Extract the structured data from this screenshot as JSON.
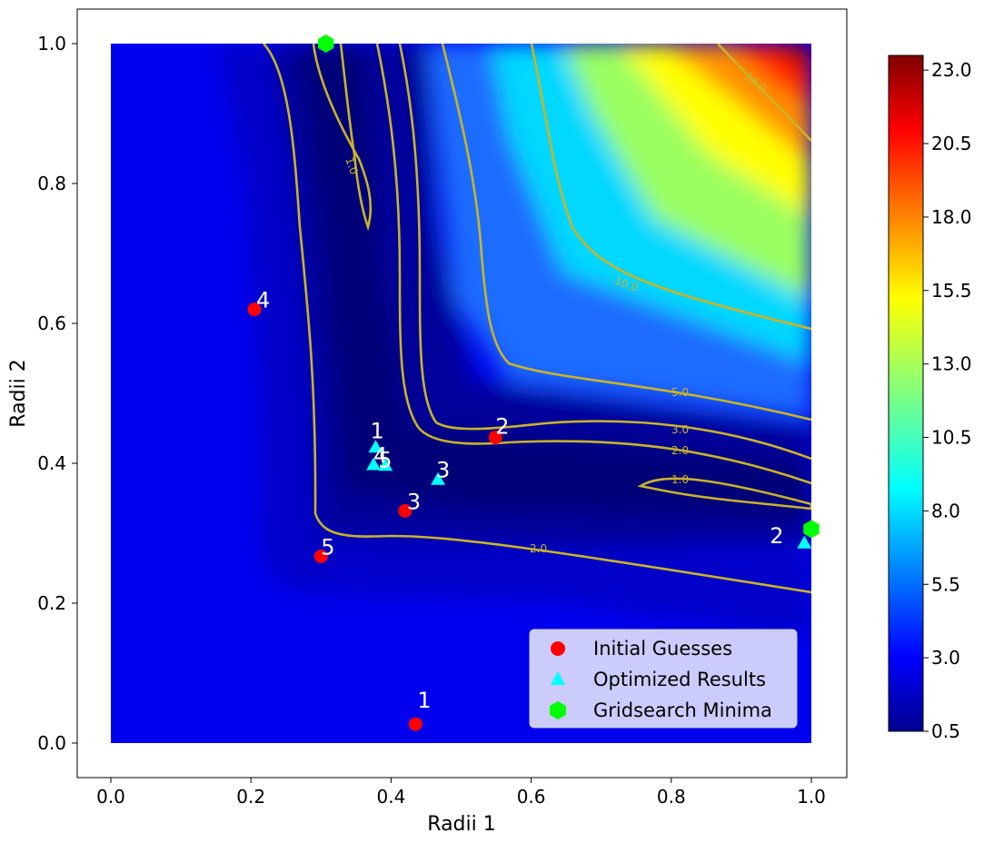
{
  "chart_data": {
    "type": "contour",
    "xlabel": "Radii 1",
    "ylabel": "Radii 2",
    "xlim": [
      -0.05,
      1.05
    ],
    "ylim": [
      -0.05,
      1.05
    ],
    "data_extent": {
      "x": [
        0.0,
        1.0
      ],
      "y": [
        0.0,
        1.0
      ]
    },
    "x_ticks": [
      "0.0",
      "0.2",
      "0.4",
      "0.6",
      "0.8",
      "1.0"
    ],
    "y_ticks": [
      "0.0",
      "0.2",
      "0.4",
      "0.6",
      "0.8",
      "1.0"
    ],
    "colorbar": {
      "range": [
        0.5,
        23.5
      ],
      "colormap": "jet",
      "ticks": [
        "0.5",
        "3.0",
        "5.5",
        "8.0",
        "10.5",
        "13.0",
        "15.5",
        "18.0",
        "20.5",
        "23.0"
      ]
    },
    "contour_labels": [
      "1.0",
      "2.0",
      "3.0",
      "5.0",
      "10.0",
      "20.0",
      "1.0",
      "2.0"
    ],
    "series": [
      {
        "name": "Initial Guesses",
        "marker": "circle",
        "color": "#ff0000",
        "points": [
          {
            "label": "1",
            "x": 0.435,
            "y": 0.027
          },
          {
            "label": "2",
            "x": 0.549,
            "y": 0.437
          },
          {
            "label": "3",
            "x": 0.42,
            "y": 0.332
          },
          {
            "label": "4",
            "x": 0.205,
            "y": 0.62
          },
          {
            "label": "5",
            "x": 0.3,
            "y": 0.267
          }
        ]
      },
      {
        "name": "Optimized Results",
        "marker": "triangle",
        "color": "#00ffff",
        "points": [
          {
            "label": "1",
            "x": 0.378,
            "y": 0.423
          },
          {
            "label": "2",
            "x": 0.99,
            "y": 0.286
          },
          {
            "label": "3",
            "x": 0.467,
            "y": 0.377
          },
          {
            "label": "4",
            "x": 0.375,
            "y": 0.398
          },
          {
            "label": "5",
            "x": 0.392,
            "y": 0.397
          }
        ]
      },
      {
        "name": "Gridsearch Minima",
        "marker": "hexagon",
        "color": "#00ff00",
        "points": [
          {
            "x": 0.307,
            "y": 1.0
          },
          {
            "x": 1.0,
            "y": 0.306
          }
        ]
      }
    ],
    "legend": {
      "position": "lower-right",
      "entries": [
        "Initial Guesses",
        "Optimized Results",
        "Gridsearch Minima"
      ]
    }
  }
}
